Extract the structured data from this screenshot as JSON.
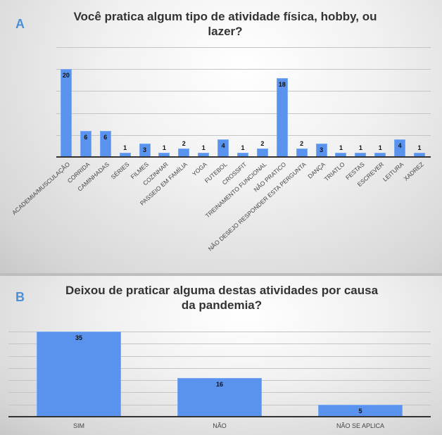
{
  "panels": {
    "a": {
      "letter": "A",
      "title_line1": "Você pratica algum tipo de atividade física, hobby, ou",
      "title_line2": "lazer?"
    },
    "b": {
      "letter": "B",
      "title_line1": "Deixou de praticar alguma destas atividades por causa",
      "title_line2": "da pandemia?"
    }
  },
  "colors": {
    "bar": "#5a93ee",
    "letter": "#4a90d9",
    "title": "#333333"
  },
  "chart_data": [
    {
      "type": "bar",
      "title": "Você pratica algum tipo de atividade física, hobby, ou lazer?",
      "categories": [
        "ACADEMIA/MUSCULAÇÃO",
        "CORRIDA",
        "CAMINHADAS",
        "SÉRIES",
        "FILMES",
        "COZINHAR",
        "PASSEIO EM FAMÍLIA",
        "YOGA",
        "FUTEBOL",
        "CROSSFIT",
        "TREINAMENTO FUNCIONAL",
        "NÃO PRATICO",
        "NÃO DESEJO RESPONDER ESTA PERGUNTA",
        "DANÇA",
        "TRIATLO",
        "FESTAS",
        "ESCREVER",
        "LEITURA",
        "XADREZ"
      ],
      "values": [
        20,
        6,
        6,
        1,
        3,
        1,
        2,
        1,
        4,
        1,
        2,
        18,
        2,
        3,
        1,
        1,
        1,
        4,
        1
      ],
      "xlabel": "",
      "ylabel": "",
      "ylim": [
        0,
        25
      ],
      "grid": true,
      "gridlines": [
        5,
        10,
        15,
        20,
        25
      ],
      "legend": "none",
      "data_labels": true
    },
    {
      "type": "bar",
      "title": "Deixou de praticar alguma destas atividades por causa da pandemia?",
      "categories": [
        "SIM",
        "NÃO",
        "NÃO SE APLICA"
      ],
      "values": [
        35,
        16,
        5
      ],
      "xlabel": "",
      "ylabel": "",
      "ylim": [
        0,
        35
      ],
      "grid": true,
      "gridlines": [
        5,
        10,
        15,
        20,
        25,
        30,
        35
      ],
      "legend": "none",
      "data_labels": true
    }
  ]
}
